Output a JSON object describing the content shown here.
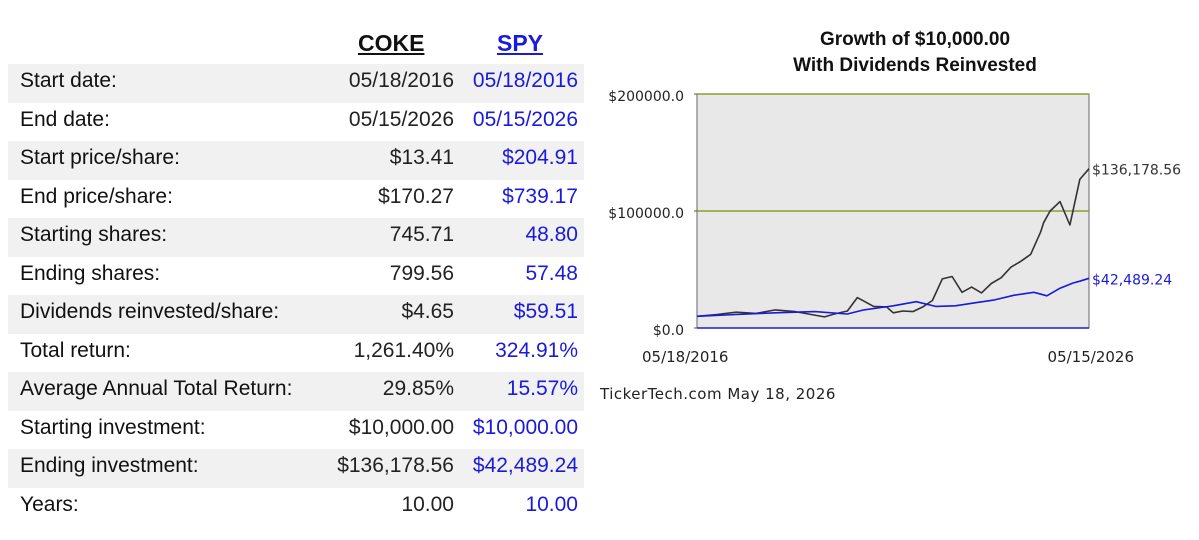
{
  "table": {
    "tickers": [
      "COKE",
      "SPY"
    ],
    "rows": [
      {
        "label": "Start date:",
        "coke": "05/18/2016",
        "spy": "05/18/2016"
      },
      {
        "label": "End date:",
        "coke": "05/15/2026",
        "spy": "05/15/2026"
      },
      {
        "label": "Start price/share:",
        "coke": "$13.41",
        "spy": "$204.91"
      },
      {
        "label": "End price/share:",
        "coke": "$170.27",
        "spy": "$739.17"
      },
      {
        "label": "Starting shares:",
        "coke": "745.71",
        "spy": "48.80"
      },
      {
        "label": "Ending shares:",
        "coke": "799.56",
        "spy": "57.48"
      },
      {
        "label": "Dividends reinvested/share:",
        "coke": "$4.65",
        "spy": "$59.51"
      },
      {
        "label": "Total return:",
        "coke": "1,261.40%",
        "spy": "324.91%"
      },
      {
        "label": "Average Annual Total Return:",
        "coke": "29.85%",
        "spy": "15.57%"
      },
      {
        "label": "Starting investment:",
        "coke": "$10,000.00",
        "spy": "$10,000.00"
      },
      {
        "label": "Ending investment:",
        "coke": "$136,178.56",
        "spy": "$42,489.24"
      },
      {
        "label": "Years:",
        "coke": "10.00",
        "spy": "10.00"
      }
    ]
  },
  "chart_title": {
    "line1": "Growth of $10,000.00",
    "line2": "With Dividends Reinvested"
  },
  "credit": "TickerTech.com  May 18, 2026",
  "colors": {
    "coke": "#333333",
    "spy": "#1a1adc",
    "gridline": "#8aa02a",
    "plot_bg": "#e8e8e8"
  },
  "chart_data": {
    "type": "line",
    "title": "Growth of $10,000.00 With Dividends Reinvested",
    "ylim": [
      0,
      200000
    ],
    "xlim": [
      "2016-05-18",
      "2026-05-15"
    ],
    "x_tick_labels": [
      "05/18/2016",
      "05/15/2026"
    ],
    "y_tick_labels": [
      "$200000.0",
      "$100000.0",
      "$0.0"
    ],
    "y_ticks": [
      200000,
      100000,
      0
    ],
    "grid": true,
    "series": [
      {
        "name": "COKE",
        "end_label": "$136,178.56",
        "x": [
          "2016-05-18",
          "2016-11-18",
          "2017-05-18",
          "2017-11-18",
          "2018-05-18",
          "2018-11-18",
          "2019-05-18",
          "2019-08-18",
          "2019-11-18",
          "2020-03-18",
          "2020-06-18",
          "2020-11-18",
          "2021-03-18",
          "2021-05-18",
          "2021-08-18",
          "2021-11-18",
          "2022-02-18",
          "2022-05-18",
          "2022-08-18",
          "2022-11-18",
          "2023-02-18",
          "2023-05-18",
          "2023-08-18",
          "2023-11-18",
          "2024-02-18",
          "2024-05-18",
          "2024-08-18",
          "2024-11-18",
          "2025-02-18",
          "2025-03-18",
          "2025-05-18",
          "2025-08-18",
          "2025-11-18",
          "2026-02-18",
          "2026-05-15"
        ],
        "values": [
          10000,
          11500,
          13500,
          12500,
          15500,
          14000,
          11000,
          9500,
          12000,
          14500,
          26000,
          18500,
          18000,
          13000,
          14500,
          14000,
          18000,
          23500,
          42000,
          44000,
          30500,
          35000,
          30000,
          38000,
          43000,
          52000,
          57000,
          63000,
          82000,
          90000,
          100000,
          108000,
          88000,
          127000,
          136178.56
        ]
      },
      {
        "name": "SPY",
        "end_label": "$42,489.24",
        "x": [
          "2016-05-18",
          "2017-05-18",
          "2018-05-18",
          "2019-05-18",
          "2020-03-18",
          "2020-08-18",
          "2021-05-18",
          "2021-12-18",
          "2022-06-18",
          "2022-12-18",
          "2023-06-18",
          "2023-12-18",
          "2024-06-18",
          "2024-12-18",
          "2025-04-18",
          "2025-08-18",
          "2025-12-18",
          "2026-02-18",
          "2026-05-15"
        ],
        "values": [
          10000,
          11500,
          13000,
          14000,
          12000,
          15500,
          19000,
          22500,
          18500,
          19000,
          21500,
          24000,
          28000,
          30500,
          27500,
          34000,
          38500,
          40000,
          42489.24
        ]
      }
    ]
  }
}
